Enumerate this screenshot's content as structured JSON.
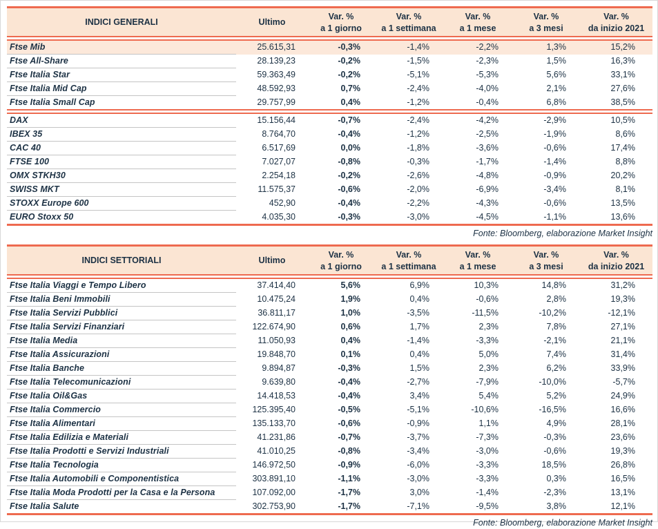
{
  "colors": {
    "accent_red": "#EE6A4F",
    "header_bg": "#FBE5D3",
    "highlight_row_bg": "#FCE8DA",
    "text": "#1C3144",
    "row_divider": "#C4C4C4",
    "page_frame": "#D8D8D8"
  },
  "tables": [
    {
      "title": "INDICI GENERALI",
      "headers": {
        "ultimo": "Ultimo",
        "var_label": "Var. %",
        "periods": [
          "a 1 giorno",
          "a 1 settimana",
          "a 1 mese",
          "a 3 mesi",
          "da inizio 2021"
        ]
      },
      "groups": [
        {
          "rows": [
            {
              "name": "Ftse Mib",
              "ultimo": "25.615,31",
              "vars": [
                "-0,3%",
                "-1,4%",
                "-2,2%",
                "1,3%",
                "15,2%"
              ],
              "highlight": true
            },
            {
              "name": "Ftse All-Share",
              "ultimo": "28.139,23",
              "vars": [
                "-0,2%",
                "-1,5%",
                "-2,3%",
                "1,5%",
                "16,3%"
              ]
            },
            {
              "name": "Ftse Italia Star",
              "ultimo": "59.363,49",
              "vars": [
                "-0,2%",
                "-5,1%",
                "-5,3%",
                "5,6%",
                "33,1%"
              ]
            },
            {
              "name": "Ftse Italia Mid Cap",
              "ultimo": "48.592,93",
              "vars": [
                "0,7%",
                "-2,4%",
                "-4,0%",
                "2,1%",
                "27,6%"
              ]
            },
            {
              "name": "Ftse Italia Small Cap",
              "ultimo": "29.757,99",
              "vars": [
                "0,4%",
                "-1,2%",
                "-0,4%",
                "6,8%",
                "38,5%"
              ]
            }
          ]
        },
        {
          "rows": [
            {
              "name": "DAX",
              "ultimo": "15.156,44",
              "vars": [
                "-0,7%",
                "-2,4%",
                "-4,2%",
                "-2,9%",
                "10,5%"
              ]
            },
            {
              "name": "IBEX 35",
              "ultimo": "8.764,70",
              "vars": [
                "-0,4%",
                "-1,2%",
                "-2,5%",
                "-1,9%",
                "8,6%"
              ]
            },
            {
              "name": "CAC 40",
              "ultimo": "6.517,69",
              "vars": [
                "0,0%",
                "-1,8%",
                "-3,6%",
                "-0,6%",
                "17,4%"
              ]
            },
            {
              "name": "FTSE 100",
              "ultimo": "7.027,07",
              "vars": [
                "-0,8%",
                "-0,3%",
                "-1,7%",
                "-1,4%",
                "8,8%"
              ]
            },
            {
              "name": "OMX STKH30",
              "ultimo": "2.254,18",
              "vars": [
                "-0,2%",
                "-2,6%",
                "-4,8%",
                "-0,9%",
                "20,2%"
              ]
            },
            {
              "name": "SWISS MKT",
              "ultimo": "11.575,37",
              "vars": [
                "-0,6%",
                "-2,0%",
                "-6,9%",
                "-3,4%",
                "8,1%"
              ]
            },
            {
              "name": "STOXX Europe 600",
              "ultimo": "452,90",
              "vars": [
                "-0,4%",
                "-2,2%",
                "-4,3%",
                "-0,6%",
                "13,5%"
              ]
            },
            {
              "name": "EURO Stoxx 50",
              "ultimo": "4.035,30",
              "vars": [
                "-0,3%",
                "-3,0%",
                "-4,5%",
                "-1,1%",
                "13,6%"
              ]
            }
          ]
        }
      ],
      "source_note": "Fonte: Bloomberg, elaborazione Market Insight"
    },
    {
      "title": "INDICI SETTORIALI",
      "headers": {
        "ultimo": "Ultimo",
        "var_label": "Var. %",
        "periods": [
          "a 1 giorno",
          "a 1 settimana",
          "a 1 mese",
          "a 3 mesi",
          "da inizio 2021"
        ]
      },
      "groups": [
        {
          "rows": [
            {
              "name": "Ftse Italia Viaggi e Tempo Libero",
              "ultimo": "37.414,40",
              "vars": [
                "5,6%",
                "6,9%",
                "10,3%",
                "14,8%",
                "31,2%"
              ]
            },
            {
              "name": "Ftse Italia Beni Immobili",
              "ultimo": "10.475,24",
              "vars": [
                "1,9%",
                "0,4%",
                "-0,6%",
                "2,8%",
                "19,3%"
              ]
            },
            {
              "name": "Ftse Italia Servizi Pubblici",
              "ultimo": "36.811,17",
              "vars": [
                "1,0%",
                "-3,5%",
                "-11,5%",
                "-10,2%",
                "-12,1%"
              ]
            },
            {
              "name": "Ftse Italia Servizi Finanziari",
              "ultimo": "122.674,90",
              "vars": [
                "0,6%",
                "1,7%",
                "2,3%",
                "7,8%",
                "27,1%"
              ]
            },
            {
              "name": "Ftse Italia Media",
              "ultimo": "11.050,93",
              "vars": [
                "0,4%",
                "-1,4%",
                "-3,3%",
                "-2,1%",
                "21,1%"
              ]
            },
            {
              "name": "Ftse Italia Assicurazioni",
              "ultimo": "19.848,70",
              "vars": [
                "0,1%",
                "0,4%",
                "5,0%",
                "7,4%",
                "31,4%"
              ]
            },
            {
              "name": "Ftse Italia Banche",
              "ultimo": "9.894,87",
              "vars": [
                "-0,3%",
                "1,5%",
                "2,3%",
                "6,2%",
                "33,9%"
              ]
            },
            {
              "name": "Ftse Italia Telecomunicazioni",
              "ultimo": "9.639,80",
              "vars": [
                "-0,4%",
                "-2,7%",
                "-7,9%",
                "-10,0%",
                "-5,7%"
              ]
            },
            {
              "name": "Ftse Italia Oil&Gas",
              "ultimo": "14.418,53",
              "vars": [
                "-0,4%",
                "3,4%",
                "5,4%",
                "5,2%",
                "24,9%"
              ]
            },
            {
              "name": "Ftse Italia Commercio",
              "ultimo": "125.395,40",
              "vars": [
                "-0,5%",
                "-5,1%",
                "-10,6%",
                "-16,5%",
                "16,6%"
              ]
            },
            {
              "name": "Ftse Italia Alimentari",
              "ultimo": "135.133,70",
              "vars": [
                "-0,6%",
                "-0,9%",
                "1,1%",
                "4,9%",
                "28,1%"
              ]
            },
            {
              "name": "Ftse Italia Edilizia e Materiali",
              "ultimo": "41.231,86",
              "vars": [
                "-0,7%",
                "-3,7%",
                "-7,3%",
                "-0,3%",
                "23,6%"
              ]
            },
            {
              "name": "Ftse Italia Prodotti e Servizi Industriali",
              "ultimo": "41.010,25",
              "vars": [
                "-0,8%",
                "-3,4%",
                "-3,0%",
                "-0,6%",
                "19,3%"
              ]
            },
            {
              "name": "Ftse Italia Tecnologia",
              "ultimo": "146.972,50",
              "vars": [
                "-0,9%",
                "-6,0%",
                "-3,3%",
                "18,5%",
                "26,8%"
              ]
            },
            {
              "name": "Ftse Italia Automobili e Componentistica",
              "ultimo": "303.891,10",
              "vars": [
                "-1,1%",
                "-3,0%",
                "-3,3%",
                "0,3%",
                "16,5%"
              ]
            },
            {
              "name": "Ftse Italia Moda Prodotti per la Casa e la Persona",
              "ultimo": "107.092,00",
              "vars": [
                "-1,7%",
                "3,0%",
                "-1,4%",
                "-2,3%",
                "13,1%"
              ]
            },
            {
              "name": "Ftse Italia Salute",
              "ultimo": "302.753,90",
              "vars": [
                "-1,7%",
                "-7,1%",
                "-9,5%",
                "3,8%",
                "12,1%"
              ]
            }
          ]
        }
      ],
      "source_note": "Fonte: Bloomberg, elaborazione Market Insight"
    }
  ]
}
